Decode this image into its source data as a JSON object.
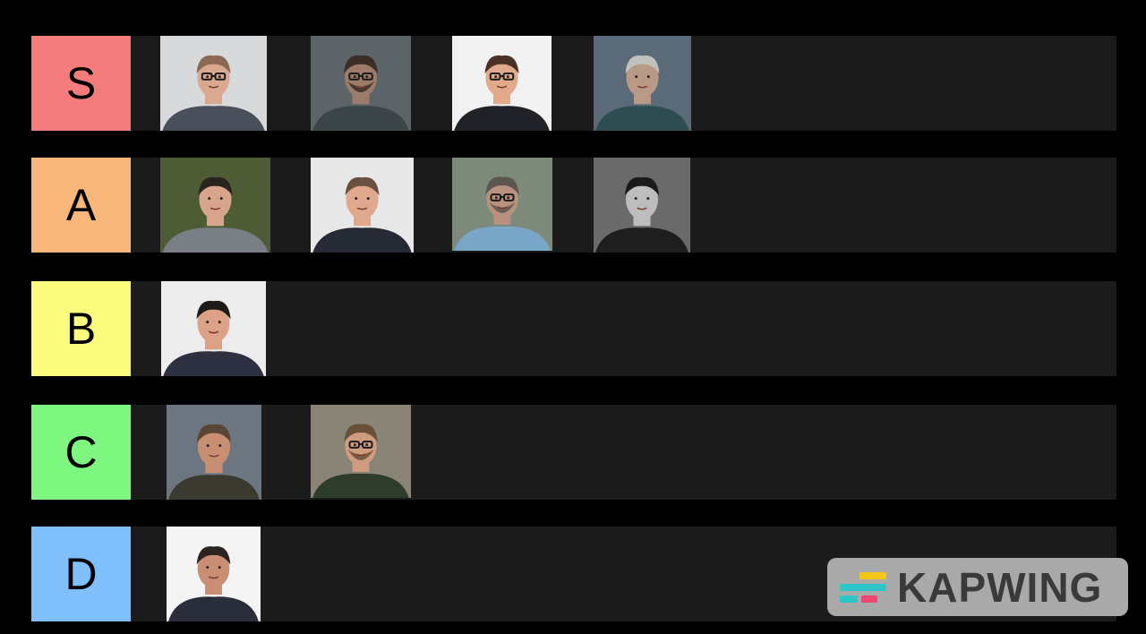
{
  "tiers": [
    {
      "label": "S",
      "color": "#f47c7c",
      "items": [
        {
          "name": "person-portrait-1",
          "bg": "#d7d9db",
          "skin": "#d9a88e",
          "hair": "#8a6a55",
          "shirt": "#4a4f5c",
          "glasses": true,
          "beard": false
        },
        {
          "name": "person-portrait-2",
          "bg": "#5c6468",
          "skin": "#9c7b6a",
          "hair": "#3a2e26",
          "shirt": "#3c4648",
          "glasses": true,
          "beard": true
        },
        {
          "name": "person-portrait-3",
          "bg": "#f2f2f2",
          "skin": "#e2a98a",
          "hair": "#4a3326",
          "shirt": "#202228",
          "glasses": true,
          "beard": false
        },
        {
          "name": "person-portrait-4",
          "bg": "#5a6a78",
          "skin": "#b99a86",
          "hair": "#c2c0bc",
          "shirt": "#2d4d52",
          "glasses": false,
          "beard": false
        }
      ]
    },
    {
      "label": "A",
      "color": "#f7b77a",
      "items": [
        {
          "name": "person-portrait-5",
          "bg": "#4d5c35",
          "skin": "#d8a48c",
          "hair": "#2a2420",
          "shirt": "#7a7f86",
          "glasses": false,
          "beard": false
        },
        {
          "name": "person-portrait-6",
          "bg": "#e8e8e8",
          "skin": "#e0a88c",
          "hair": "#6a5040",
          "shirt": "#262a35",
          "glasses": false,
          "beard": false
        },
        {
          "name": "person-portrait-7",
          "bg": "#7d8a7a",
          "skin": "#b8927e",
          "hair": "#5c5550",
          "shirt": "#7aa6c8",
          "glasses": true,
          "beard": true
        },
        {
          "name": "person-portrait-8",
          "bg": "#6a6a6a",
          "skin": "#bdbdbd",
          "hair": "#1a1a1a",
          "shirt": "#1e1e1e",
          "glasses": false,
          "beard": false
        }
      ]
    },
    {
      "label": "B",
      "color": "#fbfb7e",
      "items": [
        {
          "name": "person-portrait-9",
          "bg": "#ececec",
          "skin": "#dca186",
          "hair": "#1e1a18",
          "shirt": "#2c3040",
          "glasses": false,
          "beard": false
        }
      ]
    },
    {
      "label": "C",
      "color": "#7df77f",
      "items": [
        {
          "name": "person-portrait-10",
          "bg": "#6c7680",
          "skin": "#c98f72",
          "hair": "#5a4636",
          "shirt": "#3b3a30",
          "glasses": false,
          "beard": false
        },
        {
          "name": "person-portrait-11",
          "bg": "#8a8476",
          "skin": "#d09c80",
          "hair": "#6a5038",
          "shirt": "#2e3c2c",
          "glasses": true,
          "beard": true
        }
      ]
    },
    {
      "label": "D",
      "color": "#7fbffb",
      "items": [
        {
          "name": "person-portrait-12",
          "bg": "#f4f4f4",
          "skin": "#c98e74",
          "hair": "#2c2420",
          "shirt": "#2a2e3a",
          "glasses": false,
          "beard": false
        }
      ]
    }
  ],
  "watermark": {
    "text": "KAPWING"
  }
}
